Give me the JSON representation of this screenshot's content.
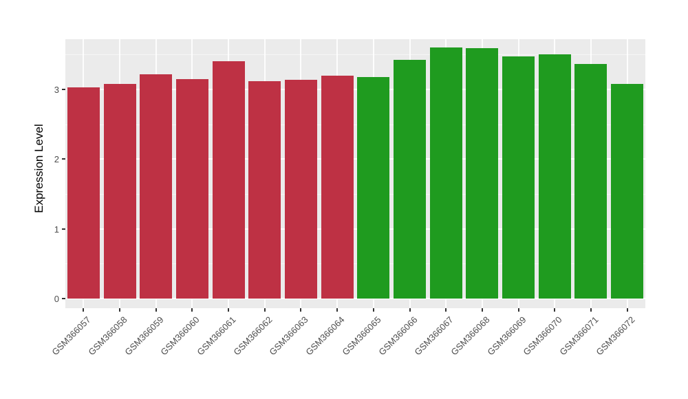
{
  "chart_data": {
    "type": "bar",
    "title": "",
    "xlabel": "",
    "ylabel": "Expression Level",
    "ylim": [
      0,
      3.72
    ],
    "yticks": [
      "0",
      "1",
      "2",
      "3"
    ],
    "minor_gridlines": [
      0.5,
      1.5,
      2.5,
      3.5
    ],
    "grid": true,
    "legend": "none",
    "panel_background": "#EBEBEB",
    "gridline_color": "#FFFFFF",
    "group_colors": {
      "left-group": "#BE3144",
      "right-group": "#1F9B1F"
    },
    "bars": [
      {
        "label": "GSM366057",
        "value": 3.03,
        "color": "#BE3144"
      },
      {
        "label": "GSM366058",
        "value": 3.08,
        "color": "#BE3144"
      },
      {
        "label": "GSM366059",
        "value": 3.22,
        "color": "#BE3144"
      },
      {
        "label": "GSM366060",
        "value": 3.15,
        "color": "#BE3144"
      },
      {
        "label": "GSM366061",
        "value": 3.4,
        "color": "#BE3144"
      },
      {
        "label": "GSM366062",
        "value": 3.12,
        "color": "#BE3144"
      },
      {
        "label": "GSM366063",
        "value": 3.14,
        "color": "#BE3144"
      },
      {
        "label": "GSM366064",
        "value": 3.2,
        "color": "#BE3144"
      },
      {
        "label": "GSM366065",
        "value": 3.18,
        "color": "#1F9B1F"
      },
      {
        "label": "GSM366066",
        "value": 3.42,
        "color": "#1F9B1F"
      },
      {
        "label": "GSM366067",
        "value": 3.6,
        "color": "#1F9B1F"
      },
      {
        "label": "GSM366068",
        "value": 3.59,
        "color": "#1F9B1F"
      },
      {
        "label": "GSM366069",
        "value": 3.47,
        "color": "#1F9B1F"
      },
      {
        "label": "GSM366070",
        "value": 3.5,
        "color": "#1F9B1F"
      },
      {
        "label": "GSM366071",
        "value": 3.37,
        "color": "#1F9B1F"
      },
      {
        "label": "GSM366072",
        "value": 3.08,
        "color": "#1F9B1F"
      }
    ]
  }
}
